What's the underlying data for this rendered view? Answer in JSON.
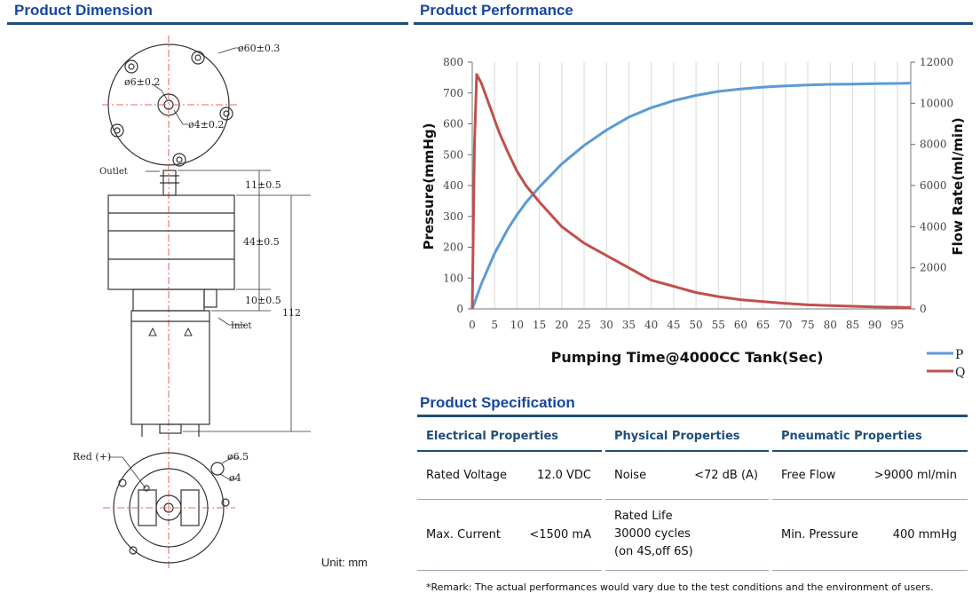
{
  "sections": {
    "dimension_title": "Product Dimension",
    "performance_title": "Product Performance",
    "specification_title": "Product Specification"
  },
  "dimension": {
    "dia_60": "ø60±0.3",
    "dia_6": "ø6±0.2",
    "dia_4": "ø4±0.2",
    "outlet": "Outlet",
    "inlet": "Inlet",
    "h_11": "11±0.5",
    "h_44": "44±0.5",
    "h_10": "10±0.5",
    "h_112": "112",
    "red": "Red (+)",
    "dia_65": "ø6.5",
    "dia_4b": "ø4",
    "unit": "Unit: mm"
  },
  "chart_data": {
    "type": "line",
    "xlabel": "Pumping Time@4000CC Tank(Sec)",
    "ylabel": "Pressure(mmHg)",
    "y2label": "Flow Rate(ml/min)",
    "xlim": [
      0,
      98
    ],
    "ylim": [
      0,
      800
    ],
    "y2lim": [
      0,
      12000
    ],
    "x_ticks": [
      0,
      5,
      10,
      15,
      20,
      25,
      30,
      35,
      40,
      45,
      50,
      55,
      60,
      65,
      70,
      75,
      80,
      85,
      90,
      95
    ],
    "y_ticks": [
      0,
      100,
      200,
      300,
      400,
      500,
      600,
      700,
      800
    ],
    "y2_ticks": [
      0,
      2000,
      4000,
      6000,
      8000,
      10000,
      12000
    ],
    "legend_position": "bottom-right",
    "series": [
      {
        "name": "P",
        "color": "#5b9bd5",
        "axis": "left",
        "x": [
          0,
          2,
          5,
          8,
          10,
          12,
          15,
          20,
          25,
          30,
          35,
          40,
          45,
          50,
          55,
          60,
          65,
          70,
          75,
          80,
          85,
          90,
          95,
          98
        ],
        "y": [
          0,
          80,
          180,
          260,
          305,
          345,
          395,
          470,
          530,
          580,
          622,
          652,
          675,
          692,
          705,
          713,
          719,
          723,
          726,
          728,
          729,
          730,
          731,
          732
        ]
      },
      {
        "name": "Q",
        "color": "#c0504d",
        "axis": "right",
        "x": [
          0,
          0.5,
          1,
          2,
          4,
          6,
          8,
          10,
          12,
          15,
          20,
          25,
          30,
          35,
          40,
          45,
          50,
          55,
          60,
          65,
          70,
          75,
          80,
          85,
          90,
          95,
          98
        ],
        "y": [
          0,
          8000,
          11400,
          11000,
          9800,
          8600,
          7600,
          6700,
          6000,
          5200,
          4000,
          3200,
          2600,
          2000,
          1400,
          1100,
          800,
          600,
          450,
          360,
          270,
          200,
          160,
          130,
          100,
          80,
          70
        ]
      }
    ]
  },
  "spec": {
    "headers": [
      "Electrical Properties",
      "Physical Properties",
      "Pneumatic Properties"
    ],
    "row1": {
      "e_label": "Rated Voltage",
      "e_value": "12.0 VDC",
      "p_label": "Noise",
      "p_value": "<72 dB (A)",
      "n_label": "Free Flow",
      "n_value": ">9000 ml/min"
    },
    "row2": {
      "e_label": "Max. Current",
      "e_value": "<1500 mA",
      "p_line1": "Rated Life",
      "p_line2": "30000 cycles",
      "p_line3": "(on 4S,off 6S)",
      "n_label": "Min. Pressure",
      "n_value": "400 mmHg"
    }
  },
  "remark": "*Remark: The actual performances would vary due to the test conditions and the environment of users."
}
